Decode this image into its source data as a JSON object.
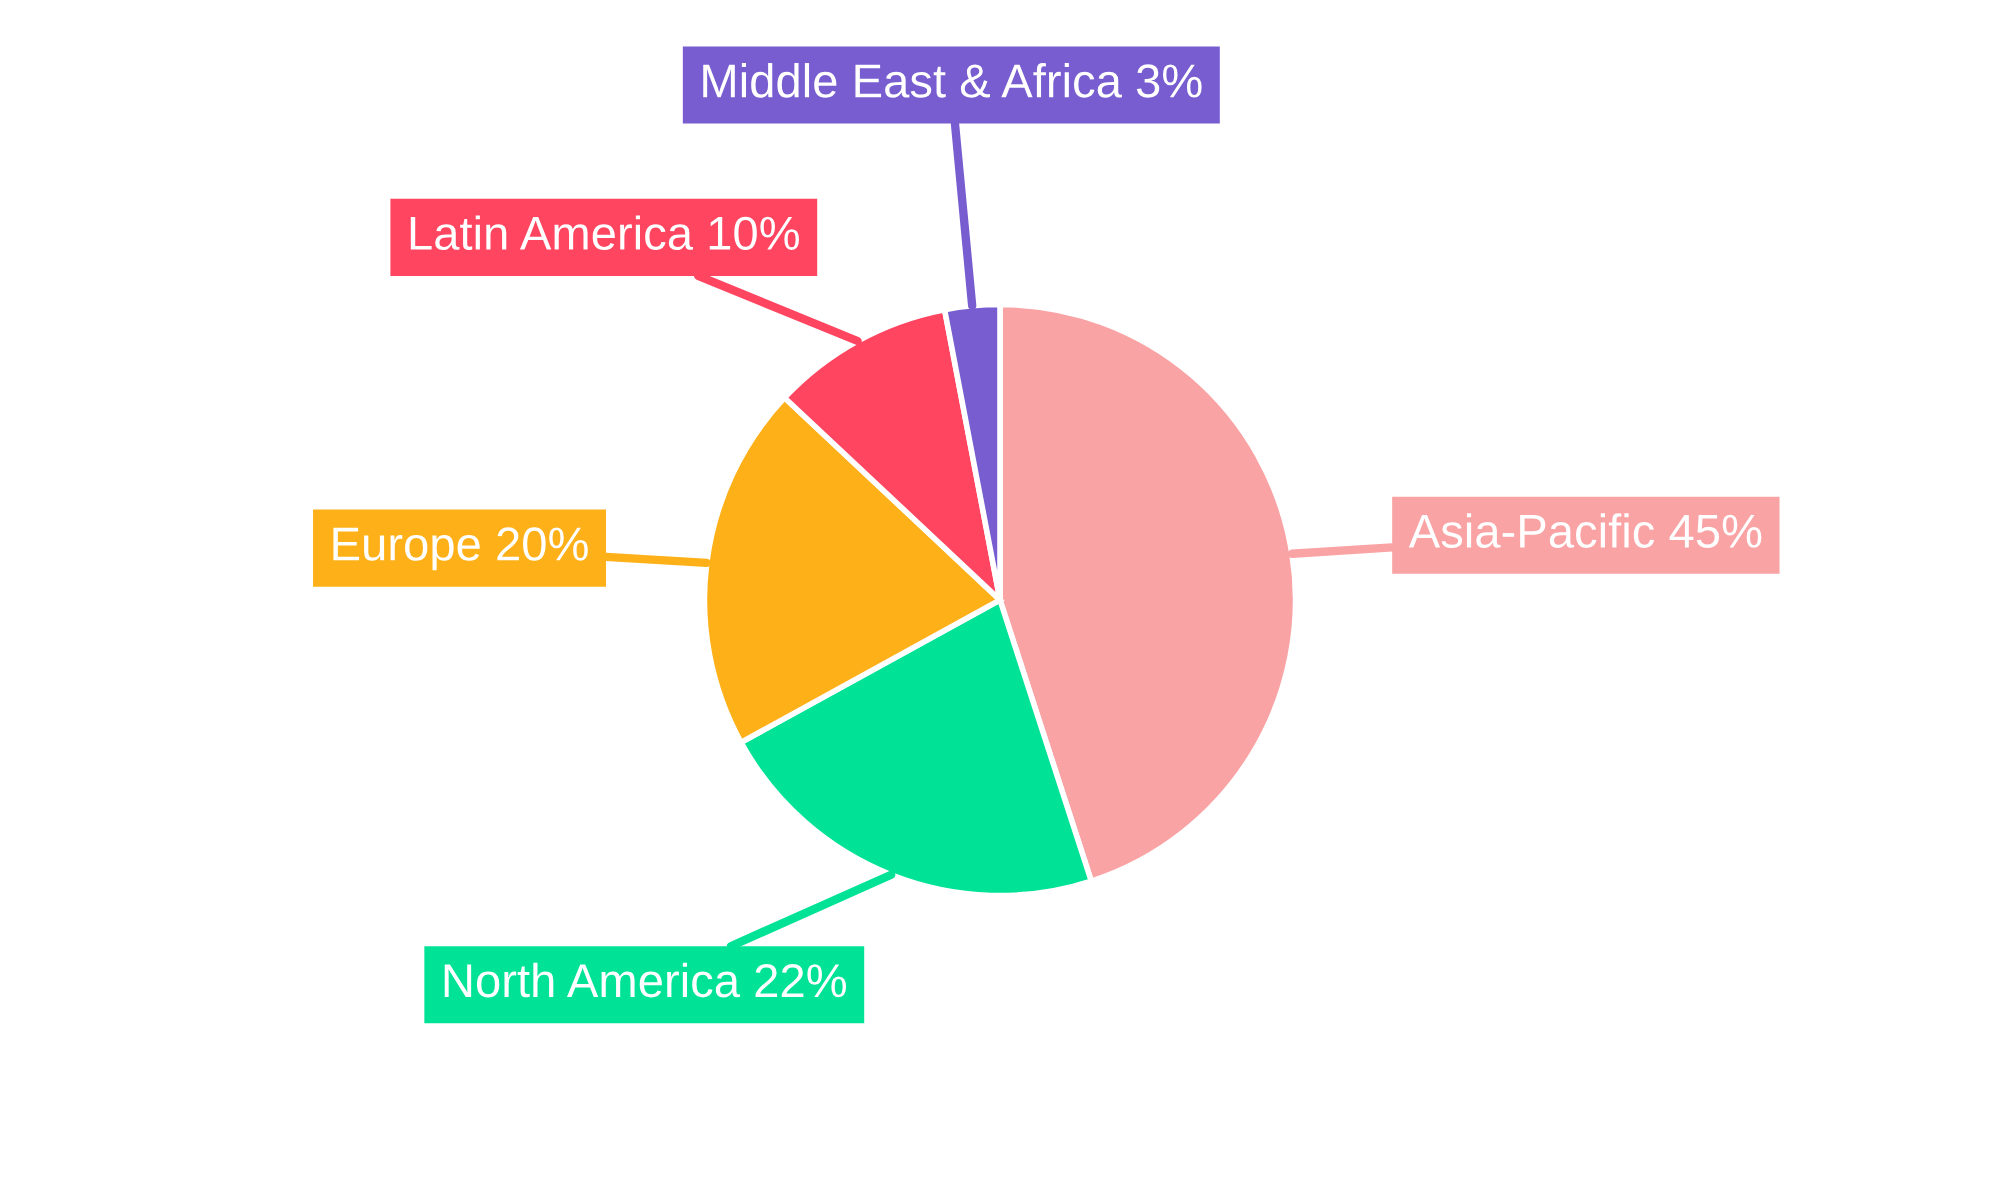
{
  "chart_data": {
    "type": "pie",
    "categories": [
      "Asia-Pacific",
      "North America",
      "Europe",
      "Latin America",
      "Middle East & Africa"
    ],
    "values": [
      45,
      22,
      20,
      10,
      3
    ],
    "value_labels": [
      "45%",
      "22%",
      "20%",
      "10%",
      "3%"
    ],
    "colors": [
      "#f9a3a4",
      "#00e396",
      "#feb019",
      "#ff4560",
      "#775dd0"
    ],
    "legend": false
  }
}
